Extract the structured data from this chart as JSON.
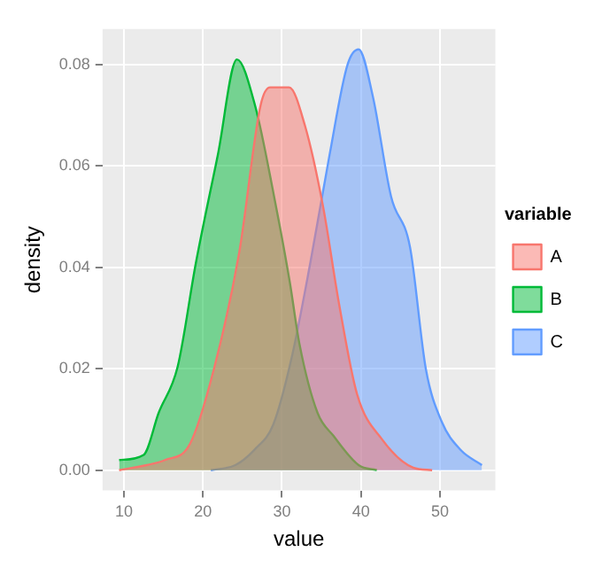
{
  "chart_data": {
    "type": "area",
    "xlabel": "value",
    "ylabel": "density",
    "legend_title": "variable",
    "legend": "right",
    "grid": true,
    "xlim": [
      7.3,
      57
    ],
    "ylim": [
      -0.004,
      0.087
    ],
    "xticks": [
      10,
      20,
      30,
      40,
      50
    ],
    "yticks": [
      {
        "value": 0,
        "label": "0.00"
      },
      0.02,
      0.04,
      0.06,
      0.08
    ],
    "series": [
      {
        "name": "A",
        "color": "#f8766d",
        "x": [
          9.4,
          12.9,
          15.2,
          18.3,
          21.4,
          24.6,
          27.3,
          28.5,
          30.9,
          32.9,
          35.2,
          37.2,
          39.5,
          42.7,
          46.6,
          49
        ],
        "values": [
          0,
          0.001,
          0.002,
          0.005,
          0.02,
          0.043,
          0.072,
          0.0755,
          0.0755,
          0.068,
          0.052,
          0.033,
          0.015,
          0.006,
          0.0005,
          0
        ]
      },
      {
        "name": "B",
        "color": "#00ba38",
        "x": [
          9.4,
          12.5,
          14.4,
          16.8,
          19.1,
          21.9,
          24.3,
          26.6,
          29,
          31,
          32.2,
          34.5,
          36.5,
          39.7,
          42
        ],
        "values": [
          0.002,
          0.003,
          0.0113,
          0.0204,
          0.0408,
          0.0623,
          0.081,
          0.0719,
          0.054,
          0.037,
          0.025,
          0.0113,
          0.0068,
          0.001,
          0
        ]
      },
      {
        "name": "C",
        "color": "#619cff",
        "x": [
          21,
          24.1,
          26.5,
          28.9,
          31.2,
          33.6,
          36,
          38.3,
          39.7,
          41.5,
          43.8,
          46.2,
          48.2,
          50.2,
          52.6,
          55.3
        ],
        "values": [
          0,
          0.001,
          0.004,
          0.009,
          0.022,
          0.041,
          0.062,
          0.08,
          0.083,
          0.0737,
          0.054,
          0.044,
          0.02,
          0.0096,
          0.004,
          0.001
        ]
      }
    ]
  }
}
